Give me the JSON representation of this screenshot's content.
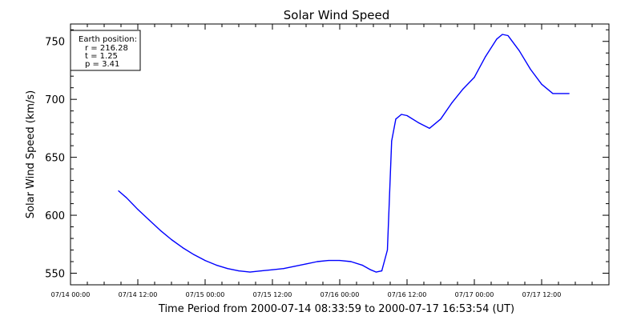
{
  "chart_data": {
    "type": "line",
    "title": "Solar Wind Speed",
    "xlabel": "Time Period from 2000-07-14 08:33:59 to 2000-07-17 16:53:54 (UT)",
    "ylabel": "Solar Wind Speed (km/s)",
    "ylim": [
      540,
      765
    ],
    "xlim": [
      "2000-07-14 00:00",
      "2000-07-18 00:00"
    ],
    "y_ticks": [
      550,
      600,
      650,
      700,
      750
    ],
    "x_ticks": [
      "07/14 00:00",
      "07/14 12:00",
      "07/15 00:00",
      "07/15 12:00",
      "07/16 00:00",
      "07/16 12:00",
      "07/17 00:00",
      "07/17 12:00"
    ],
    "grid": false,
    "line_color": "#0000ff",
    "series": [
      {
        "x": [
          "2000-07-14 08:34",
          "2000-07-14 10:00",
          "2000-07-14 12:00",
          "2000-07-14 14:00",
          "2000-07-14 16:00",
          "2000-07-14 18:00",
          "2000-07-14 20:00",
          "2000-07-14 22:00",
          "2000-07-15 00:00",
          "2000-07-15 02:00",
          "2000-07-15 04:00",
          "2000-07-15 06:00",
          "2000-07-15 08:00",
          "2000-07-15 10:00",
          "2000-07-15 12:00",
          "2000-07-15 14:00",
          "2000-07-15 16:00",
          "2000-07-15 18:00",
          "2000-07-15 20:00",
          "2000-07-15 22:00",
          "2000-07-16 00:00",
          "2000-07-16 02:00",
          "2000-07-16 04:00",
          "2000-07-16 05:30",
          "2000-07-16 06:30",
          "2000-07-16 07:30",
          "2000-07-16 08:30",
          "2000-07-16 09:15",
          "2000-07-16 10:00",
          "2000-07-16 11:00",
          "2000-07-16 12:00",
          "2000-07-16 14:00",
          "2000-07-16 16:00",
          "2000-07-16 18:00",
          "2000-07-16 20:00",
          "2000-07-16 22:00",
          "2000-07-17 00:00",
          "2000-07-17 02:00",
          "2000-07-17 04:00",
          "2000-07-17 05:00",
          "2000-07-17 06:00",
          "2000-07-17 08:00",
          "2000-07-17 10:00",
          "2000-07-17 12:00",
          "2000-07-17 14:00",
          "2000-07-17 16:54"
        ],
        "y": [
          621,
          615,
          605,
          596,
          587,
          579,
          572,
          566,
          561,
          557,
          554,
          552,
          551,
          552,
          553,
          554,
          556,
          558,
          560,
          561,
          561,
          560,
          557,
          553,
          551,
          552,
          570,
          664,
          683,
          687,
          686,
          680,
          675,
          683,
          697,
          709,
          719,
          737,
          752,
          756,
          755,
          742,
          726,
          713,
          705,
          705
        ]
      }
    ],
    "annotation": {
      "heading": "Earth position:",
      "lines": [
        "r = 216.28",
        "t = 1.25",
        "p = 3.41"
      ]
    }
  }
}
